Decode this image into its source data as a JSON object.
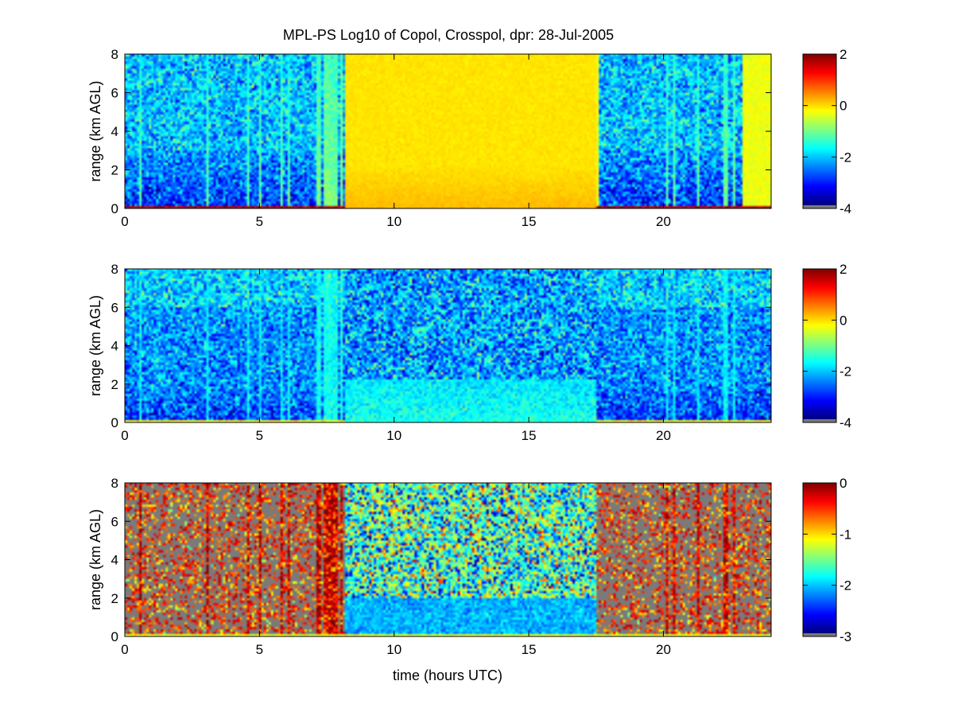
{
  "figure": {
    "title": "MPL-PS Log10 of Copol, Crosspol, dpr: 28-Jul-2005",
    "xlabel": "time (hours UTC)"
  },
  "colors": {
    "colormap": "jet",
    "nan_color": "#7a7a7a",
    "background": "#ffffff"
  },
  "chart_data": [
    {
      "type": "heatmap",
      "panel": "top",
      "quantity": "Log10 of Copol",
      "ylabel": "range (km AGL)",
      "xlim": [
        0,
        24
      ],
      "ylim": [
        0,
        8
      ],
      "xticks": [
        "0",
        "5",
        "10",
        "15",
        "20"
      ],
      "yticks": [
        "0",
        "2",
        "4",
        "6",
        "8"
      ],
      "colorbar": {
        "clim": [
          -4,
          2
        ],
        "ticks": [
          "2",
          "0",
          "-2",
          "-4"
        ]
      },
      "daylight_interval_hours": [
        8.2,
        17.5
      ],
      "night_background_value": -2.3,
      "day_background_value": -0.1,
      "surface_layer_value": 1.6
    },
    {
      "type": "heatmap",
      "panel": "middle",
      "quantity": "Log10 of Crosspol",
      "ylabel": "range (km AGL)",
      "xlim": [
        0,
        24
      ],
      "ylim": [
        0,
        8
      ],
      "xticks": [
        "0",
        "5",
        "10",
        "15",
        "20"
      ],
      "yticks": [
        "0",
        "2",
        "4",
        "6",
        "8"
      ],
      "colorbar": {
        "clim": [
          -4,
          2
        ],
        "ticks": [
          "2",
          "0",
          "-2",
          "-4"
        ]
      },
      "daylight_interval_hours": [
        8.2,
        17.5
      ],
      "night_background_value": -2.4,
      "day_background_value": -2.3,
      "surface_layer_value": -0.2
    },
    {
      "type": "heatmap",
      "panel": "bottom",
      "quantity": "Log10 of dpr",
      "ylabel": "range (km AGL)",
      "xlim": [
        0,
        24
      ],
      "ylim": [
        0,
        8
      ],
      "xticks": [
        "0",
        "5",
        "10",
        "15",
        "20"
      ],
      "yticks": [
        "0",
        "2",
        "4",
        "6",
        "8"
      ],
      "colorbar": {
        "clim": [
          -3,
          0
        ],
        "ticks": [
          "0",
          "-1",
          "-2",
          "-3"
        ]
      },
      "daylight_interval_hours": [
        8.2,
        17.5
      ],
      "night_background_value": -0.15,
      "day_background_value": -1.7,
      "surface_layer_value": -1.2
    }
  ]
}
